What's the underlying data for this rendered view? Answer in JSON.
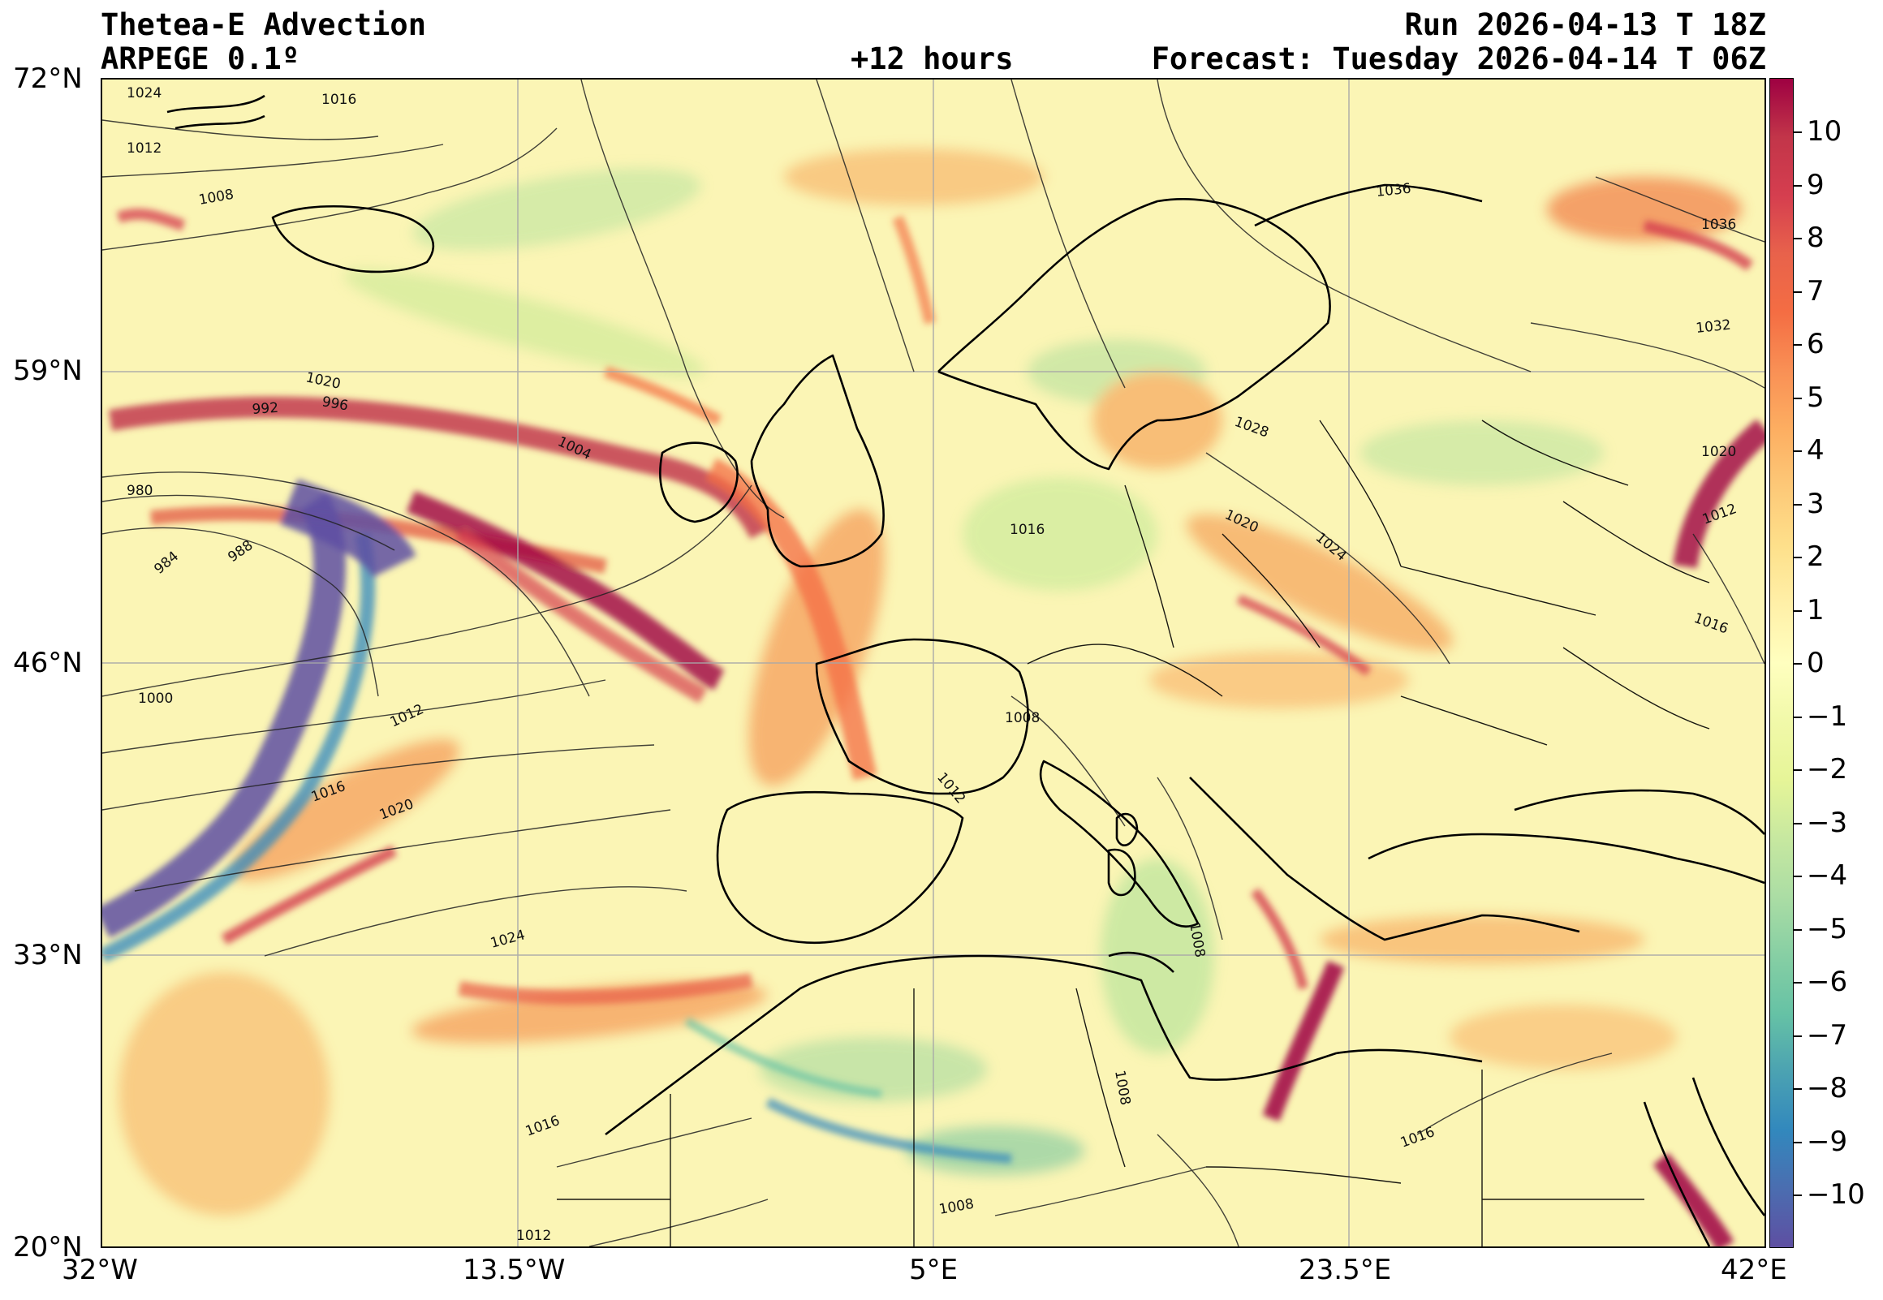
{
  "header": {
    "title_left_1": "Thetea-E Advection",
    "title_left_2": "ARPEGE 0.1º",
    "title_center": "+12 hours",
    "title_right_1": "Run 2026-04-13 T 18Z",
    "title_right_2": "Forecast: Tuesday 2026-04-14 T 06Z"
  },
  "axes": {
    "lat_labels": [
      "72°N",
      "59°N",
      "46°N",
      "33°N",
      "20°N"
    ],
    "lon_labels": [
      "32°W",
      "13.5°W",
      "5°E",
      "23.5°E",
      "42°E"
    ]
  },
  "colorbar": {
    "ticks": [
      "10",
      "9",
      "8",
      "7",
      "6",
      "5",
      "4",
      "3",
      "2",
      "1",
      "0",
      "−1",
      "−2",
      "−3",
      "−4",
      "−5",
      "−6",
      "−7",
      "−8",
      "−9",
      "−10"
    ],
    "colors": [
      "#9e0142",
      "#c23549",
      "#d53e4f",
      "#e8624b",
      "#f46d43",
      "#f99055",
      "#fdae61",
      "#fdc978",
      "#fee08b",
      "#fff0a8",
      "#ffffbf",
      "#f1f9a9",
      "#e6f598",
      "#c7e8a0",
      "#abdda4",
      "#87cfa4",
      "#66c2a5",
      "#4ba2b2",
      "#3288bd",
      "#4b6db0",
      "#5e4fa2"
    ]
  },
  "isobar_labels": [
    "1024",
    "1020",
    "1016",
    "1012",
    "1008",
    "992",
    "996",
    "1004",
    "980",
    "984",
    "988",
    "1000",
    "1012",
    "1016",
    "1020",
    "1024",
    "1036",
    "1036",
    "1032",
    "1028",
    "1020",
    "1024",
    "1016",
    "1020",
    "1012",
    "1016",
    "1008",
    "1012",
    "1008",
    "1008",
    "1016",
    "1016",
    "1008",
    "1012"
  ]
}
